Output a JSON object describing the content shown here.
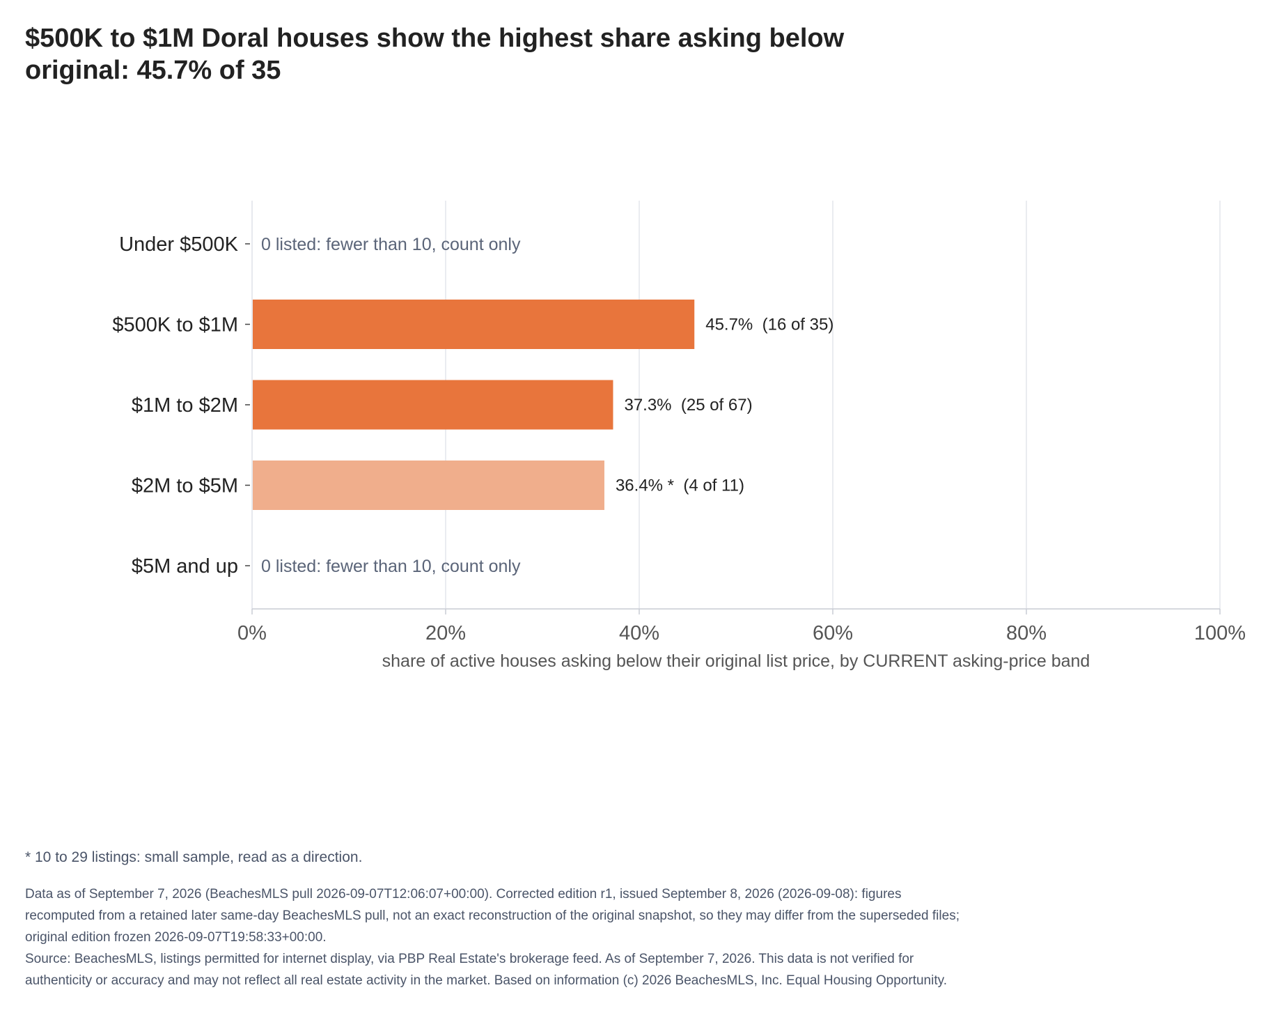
{
  "title": "$500K to $1M Doral houses show the highest share asking below original: 45.7% of 35",
  "chart_data": {
    "type": "bar",
    "orientation": "horizontal",
    "categories": [
      "Under $500K",
      "$500K to $1M",
      "$1M to $2M",
      "$2M to $5M",
      "$5M and up"
    ],
    "values": [
      null,
      45.7,
      37.3,
      36.4,
      null
    ],
    "bar_labels": [
      "0 listed: fewer than 10, count only",
      "45.7%  (16 of 35)",
      "37.3%  (25 of 67)",
      "36.4% *  (4 of 11)",
      "0 listed: fewer than 10, count only"
    ],
    "small_sample": [
      false,
      false,
      false,
      true,
      false
    ],
    "xlabel": "share of active houses asking below their original list price, by CURRENT asking-price band",
    "ylabel": "",
    "xlim": [
      0,
      100
    ],
    "x_ticks": [
      0,
      20,
      40,
      60,
      80,
      100
    ],
    "x_tick_labels": [
      "0%",
      "20%",
      "40%",
      "60%",
      "80%",
      "100%"
    ],
    "grid": "vertical",
    "colors": {
      "bar": "#e8753c",
      "bar_small_sample": "#f0ae8c",
      "grid": "#e4e6ec",
      "count_only_text": "#5a6478"
    }
  },
  "footnote": "* 10 to 29 listings: small sample, read as a direction.",
  "notes": [
    "Data as of September 7, 2026 (BeachesMLS pull 2026-09-07T12:06:07+00:00). Corrected edition r1, issued September 8, 2026 (2026-09-08): figures recomputed from a retained later same-day BeachesMLS pull, not an exact reconstruction of the original snapshot, so they may differ from the superseded files; original edition frozen 2026-09-07T19:58:33+00:00.",
    "Source: BeachesMLS, listings permitted for internet display, via PBP Real Estate's brokerage feed. As of September 7, 2026. This data is not verified for authenticity or accuracy and may not reflect all real estate activity in the market. Based on information (c) 2026 BeachesMLS, Inc. Equal Housing Opportunity."
  ]
}
